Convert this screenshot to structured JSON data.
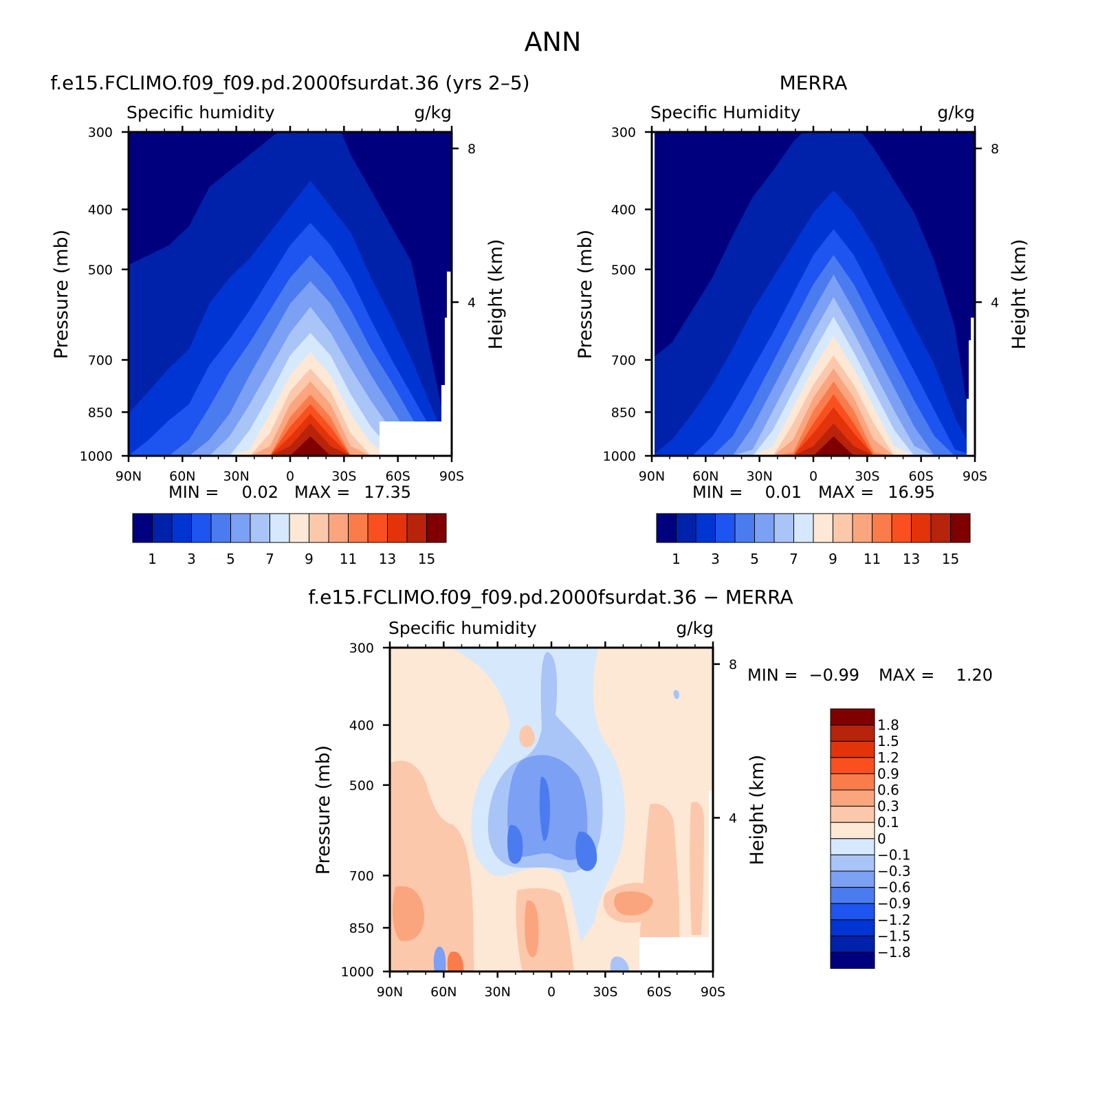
{
  "figure": {
    "title": "ANN"
  },
  "colors": {
    "sequential": [
      "#00007f",
      "#0022aa",
      "#0035d4",
      "#1e55f0",
      "#4a7cf0",
      "#7ba0f4",
      "#a9c4f6",
      "#d6e8fb",
      "#fde8d6",
      "#fcc8ac",
      "#fba57f",
      "#fb7c4b",
      "#fa4f1f",
      "#e3330b",
      "#b8230b",
      "#800000"
    ],
    "diverging": [
      "#00007f",
      "#0022aa",
      "#0035d4",
      "#1e55f0",
      "#4a7cf0",
      "#7ba0f4",
      "#a9c4f6",
      "#d6e8fb",
      "#fde8d6",
      "#fcc8ac",
      "#fba57f",
      "#fb7c4b",
      "#fa4f1f",
      "#e3330b",
      "#b8230b",
      "#800000"
    ]
  },
  "panels": {
    "model": {
      "title": "f.e15.FCLIMO.f09_f09.pd.2000fsurdat.36 (yrs 2–5)",
      "variable": "Specific humidity",
      "units": "g/kg",
      "ylabel": "Pressure (mb)",
      "ylabel_right": "Height (km)",
      "min_label": "MIN =",
      "min_value": "0.02",
      "max_label": "MAX =",
      "max_value": "17.35"
    },
    "obs": {
      "title": "MERRA",
      "variable": "Specific Humidity",
      "units": "g/kg",
      "ylabel": "Pressure (mb)",
      "ylabel_right": "Height (km)",
      "min_label": "MIN =",
      "min_value": "0.01",
      "max_label": "MAX =",
      "max_value": "16.95"
    },
    "diff": {
      "title": "f.e15.FCLIMO.f09_f09.pd.2000fsurdat.36 − MERRA",
      "variable": "Specific humidity",
      "units": "g/kg",
      "ylabel": "Pressure (mb)",
      "ylabel_right": "Height (km)",
      "min_label": "MIN =",
      "min_value": "−0.99",
      "max_label": "MAX =",
      "max_value": "1.20"
    }
  },
  "chart_data": [
    {
      "type": "heatmap",
      "title": "f.e15.FCLIMO.f09_f09.pd.2000fsurdat.36 (yrs 2–5)",
      "subtitle": "Specific humidity",
      "units": "g/kg",
      "xlabel": "",
      "ylabel": "Pressure (mb)",
      "ylabel_right": "Height (km)",
      "x_ticks": [
        "90N",
        "60N",
        "30N",
        "0",
        "30S",
        "60S",
        "90S"
      ],
      "y_ticks": [
        300,
        400,
        500,
        700,
        850,
        1000
      ],
      "y_right_ticks": [
        8,
        4
      ],
      "ylim": [
        1000,
        300
      ],
      "y_scale": "log",
      "min": 0.02,
      "max": 17.35,
      "colorbar_levels": [
        1,
        2,
        3,
        4,
        5,
        6,
        7,
        8,
        9,
        10,
        11,
        12,
        13,
        14,
        15
      ],
      "colorbar_labels": [
        "1",
        "3",
        "5",
        "7",
        "9",
        "11",
        "13",
        "15"
      ],
      "contour_depth": [
        {
          "level": 1,
          "depth": [
            0.59,
            0.62,
            0.65,
            0.71,
            0.83,
            0.88,
            0.93,
            0.98,
            1.03,
            1.1,
            1.08,
            0.93,
            0.82,
            0.71,
            0.6,
            0.3,
            0.0
          ]
        },
        {
          "level": 2,
          "depth": [
            0.13,
            0.2,
            0.27,
            0.33,
            0.47,
            0.55,
            0.61,
            0.69,
            0.77,
            0.85,
            0.77,
            0.69,
            0.55,
            0.43,
            0.3,
            0.15,
            0.0
          ]
        },
        {
          "level": 3,
          "depth": [
            0.0,
            0.05,
            0.11,
            0.16,
            0.28,
            0.36,
            0.45,
            0.55,
            0.65,
            0.72,
            0.65,
            0.55,
            0.42,
            0.3,
            0.19,
            0.08,
            0.0
          ]
        },
        {
          "level": 4,
          "depth": [
            0.0,
            0.0,
            0.0,
            0.05,
            0.15,
            0.26,
            0.35,
            0.45,
            0.55,
            0.62,
            0.55,
            0.45,
            0.33,
            0.23,
            0.12,
            0.02,
            0.0
          ]
        },
        {
          "level": 5,
          "depth": [
            0.0,
            0.0,
            0.0,
            0.0,
            0.05,
            0.13,
            0.25,
            0.36,
            0.47,
            0.54,
            0.47,
            0.36,
            0.25,
            0.15,
            0.05,
            0.0,
            0.0
          ]
        },
        {
          "level": 6,
          "depth": [
            0.0,
            0.0,
            0.0,
            0.0,
            0.0,
            0.06,
            0.16,
            0.27,
            0.38,
            0.46,
            0.38,
            0.27,
            0.17,
            0.08,
            0.0,
            0.0,
            0.0
          ]
        },
        {
          "level": 7,
          "depth": [
            0.0,
            0.0,
            0.0,
            0.0,
            0.0,
            0.0,
            0.08,
            0.19,
            0.31,
            0.38,
            0.31,
            0.19,
            0.09,
            0.02,
            0.0,
            0.0,
            0.0
          ]
        },
        {
          "level": 8,
          "depth": [
            0.0,
            0.0,
            0.0,
            0.0,
            0.0,
            0.0,
            0.02,
            0.13,
            0.25,
            0.32,
            0.25,
            0.13,
            0.04,
            0.0,
            0.0,
            0.0,
            0.0
          ]
        },
        {
          "level": 9,
          "depth": [
            0.0,
            0.0,
            0.0,
            0.0,
            0.0,
            0.0,
            0.0,
            0.07,
            0.2,
            0.27,
            0.2,
            0.07,
            0.0,
            0.0,
            0.0,
            0.0,
            0.0
          ]
        },
        {
          "level": 10,
          "depth": [
            0.0,
            0.0,
            0.0,
            0.0,
            0.0,
            0.0,
            0.0,
            0.03,
            0.16,
            0.23,
            0.16,
            0.03,
            0.0,
            0.0,
            0.0,
            0.0,
            0.0
          ]
        },
        {
          "level": 11,
          "depth": [
            0.0,
            0.0,
            0.0,
            0.0,
            0.0,
            0.0,
            0.0,
            0.0,
            0.12,
            0.19,
            0.12,
            0.0,
            0.0,
            0.0,
            0.0,
            0.0,
            0.0
          ]
        },
        {
          "level": 12,
          "depth": [
            0.0,
            0.0,
            0.0,
            0.0,
            0.0,
            0.0,
            0.0,
            0.0,
            0.09,
            0.16,
            0.09,
            0.0,
            0.0,
            0.0,
            0.0,
            0.0,
            0.0
          ]
        },
        {
          "level": 13,
          "depth": [
            0.0,
            0.0,
            0.0,
            0.0,
            0.0,
            0.0,
            0.0,
            0.0,
            0.06,
            0.13,
            0.06,
            0.0,
            0.0,
            0.0,
            0.0,
            0.0,
            0.0
          ]
        },
        {
          "level": 14,
          "depth": [
            0.0,
            0.0,
            0.0,
            0.0,
            0.0,
            0.0,
            0.0,
            0.0,
            0.03,
            0.1,
            0.03,
            0.0,
            0.0,
            0.0,
            0.0,
            0.0,
            0.0
          ]
        },
        {
          "level": 15,
          "depth": [
            0.0,
            0.0,
            0.0,
            0.0,
            0.0,
            0.0,
            0.0,
            0.0,
            0.0,
            0.06,
            0.0,
            0.0,
            0.0,
            0.0,
            0.0,
            0.0,
            0.0
          ]
        }
      ]
    },
    {
      "type": "heatmap",
      "title": "MERRA",
      "subtitle": "Specific Humidity",
      "units": "g/kg",
      "xlabel": "",
      "ylabel": "Pressure (mb)",
      "ylabel_right": "Height (km)",
      "x_ticks": [
        "90N",
        "60N",
        "30N",
        "0",
        "30S",
        "60S",
        "90S"
      ],
      "y_ticks": [
        300,
        400,
        500,
        700,
        850,
        1000
      ],
      "y_right_ticks": [
        8,
        4
      ],
      "ylim": [
        1000,
        300
      ],
      "y_scale": "log",
      "min": 0.01,
      "max": 16.95,
      "colorbar_levels": [
        1,
        2,
        3,
        4,
        5,
        6,
        7,
        8,
        9,
        10,
        11,
        12,
        13,
        14,
        15
      ],
      "colorbar_labels": [
        "1",
        "3",
        "5",
        "7",
        "9",
        "11",
        "13",
        "15"
      ],
      "contour_depth": [
        {
          "level": 1,
          "depth": [
            0.3,
            0.35,
            0.45,
            0.55,
            0.68,
            0.8,
            0.88,
            0.97,
            1.03,
            1.1,
            1.03,
            0.95,
            0.85,
            0.75,
            0.6,
            0.4,
            0.0
          ]
        },
        {
          "level": 2,
          "depth": [
            0.0,
            0.05,
            0.13,
            0.22,
            0.33,
            0.45,
            0.55,
            0.65,
            0.75,
            0.82,
            0.75,
            0.65,
            0.52,
            0.4,
            0.28,
            0.12,
            0.0
          ]
        },
        {
          "level": 3,
          "depth": [
            0.0,
            0.0,
            0.0,
            0.06,
            0.16,
            0.27,
            0.38,
            0.5,
            0.62,
            0.7,
            0.62,
            0.5,
            0.38,
            0.26,
            0.14,
            0.02,
            0.0
          ]
        },
        {
          "level": 4,
          "depth": [
            0.0,
            0.0,
            0.0,
            0.0,
            0.06,
            0.17,
            0.29,
            0.41,
            0.53,
            0.62,
            0.53,
            0.41,
            0.29,
            0.17,
            0.06,
            0.0,
            0.0
          ]
        },
        {
          "level": 5,
          "depth": [
            0.0,
            0.0,
            0.0,
            0.0,
            0.0,
            0.09,
            0.21,
            0.33,
            0.45,
            0.56,
            0.45,
            0.33,
            0.21,
            0.09,
            0.0,
            0.0,
            0.0
          ]
        },
        {
          "level": 6,
          "depth": [
            0.0,
            0.0,
            0.0,
            0.0,
            0.0,
            0.02,
            0.14,
            0.26,
            0.38,
            0.49,
            0.38,
            0.26,
            0.14,
            0.03,
            0.0,
            0.0,
            0.0
          ]
        },
        {
          "level": 7,
          "depth": [
            0.0,
            0.0,
            0.0,
            0.0,
            0.0,
            0.0,
            0.08,
            0.2,
            0.32,
            0.43,
            0.32,
            0.2,
            0.08,
            0.0,
            0.0,
            0.0,
            0.0
          ]
        },
        {
          "level": 8,
          "depth": [
            0.0,
            0.0,
            0.0,
            0.0,
            0.0,
            0.0,
            0.03,
            0.15,
            0.27,
            0.37,
            0.27,
            0.15,
            0.03,
            0.0,
            0.0,
            0.0,
            0.0
          ]
        },
        {
          "level": 9,
          "depth": [
            0.0,
            0.0,
            0.0,
            0.0,
            0.0,
            0.0,
            0.0,
            0.1,
            0.22,
            0.31,
            0.22,
            0.1,
            0.0,
            0.0,
            0.0,
            0.0,
            0.0
          ]
        },
        {
          "level": 10,
          "depth": [
            0.0,
            0.0,
            0.0,
            0.0,
            0.0,
            0.0,
            0.0,
            0.05,
            0.18,
            0.27,
            0.18,
            0.05,
            0.0,
            0.0,
            0.0,
            0.0,
            0.0
          ]
        },
        {
          "level": 11,
          "depth": [
            0.0,
            0.0,
            0.0,
            0.0,
            0.0,
            0.0,
            0.0,
            0.01,
            0.14,
            0.23,
            0.14,
            0.01,
            0.0,
            0.0,
            0.0,
            0.0,
            0.0
          ]
        },
        {
          "level": 12,
          "depth": [
            0.0,
            0.0,
            0.0,
            0.0,
            0.0,
            0.0,
            0.0,
            0.0,
            0.1,
            0.19,
            0.1,
            0.0,
            0.0,
            0.0,
            0.0,
            0.0,
            0.0
          ]
        },
        {
          "level": 13,
          "depth": [
            0.0,
            0.0,
            0.0,
            0.0,
            0.0,
            0.0,
            0.0,
            0.0,
            0.07,
            0.15,
            0.07,
            0.0,
            0.0,
            0.0,
            0.0,
            0.0,
            0.0
          ]
        },
        {
          "level": 14,
          "depth": [
            0.0,
            0.0,
            0.0,
            0.0,
            0.0,
            0.0,
            0.0,
            0.0,
            0.03,
            0.1,
            0.03,
            0.0,
            0.0,
            0.0,
            0.0,
            0.0,
            0.0
          ]
        },
        {
          "level": 15,
          "depth": [
            0.0,
            0.0,
            0.0,
            0.0,
            0.0,
            0.0,
            0.0,
            0.0,
            0.0,
            0.06,
            0.0,
            0.0,
            0.0,
            0.0,
            0.0,
            0.0,
            0.0
          ]
        }
      ]
    },
    {
      "type": "heatmap",
      "title": "f.e15.FCLIMO.f09_f09.pd.2000fsurdat.36 − MERRA",
      "subtitle": "Specific humidity",
      "units": "g/kg",
      "xlabel": "",
      "ylabel": "Pressure (mb)",
      "ylabel_right": "Height (km)",
      "x_ticks": [
        "90N",
        "60N",
        "30N",
        "0",
        "30S",
        "60S",
        "90S"
      ],
      "y_ticks": [
        300,
        400,
        500,
        700,
        850,
        1000
      ],
      "y_right_ticks": [
        8,
        4
      ],
      "ylim": [
        1000,
        300
      ],
      "y_scale": "log",
      "min": -0.99,
      "max": 1.2,
      "colorbar_levels": [
        -1.8,
        -1.5,
        -1.2,
        -0.9,
        -0.6,
        -0.3,
        -0.1,
        0,
        0.1,
        0.3,
        0.6,
        0.9,
        1.2,
        1.5,
        1.8
      ],
      "colorbar_labels": [
        "1.8",
        "1.5",
        "1.2",
        "0.9",
        "0.6",
        "0.3",
        "0.1",
        "0",
        "−0.1",
        "−0.3",
        "−0.6",
        "−0.9",
        "−1.2",
        "−1.5",
        "−1.8"
      ]
    }
  ]
}
